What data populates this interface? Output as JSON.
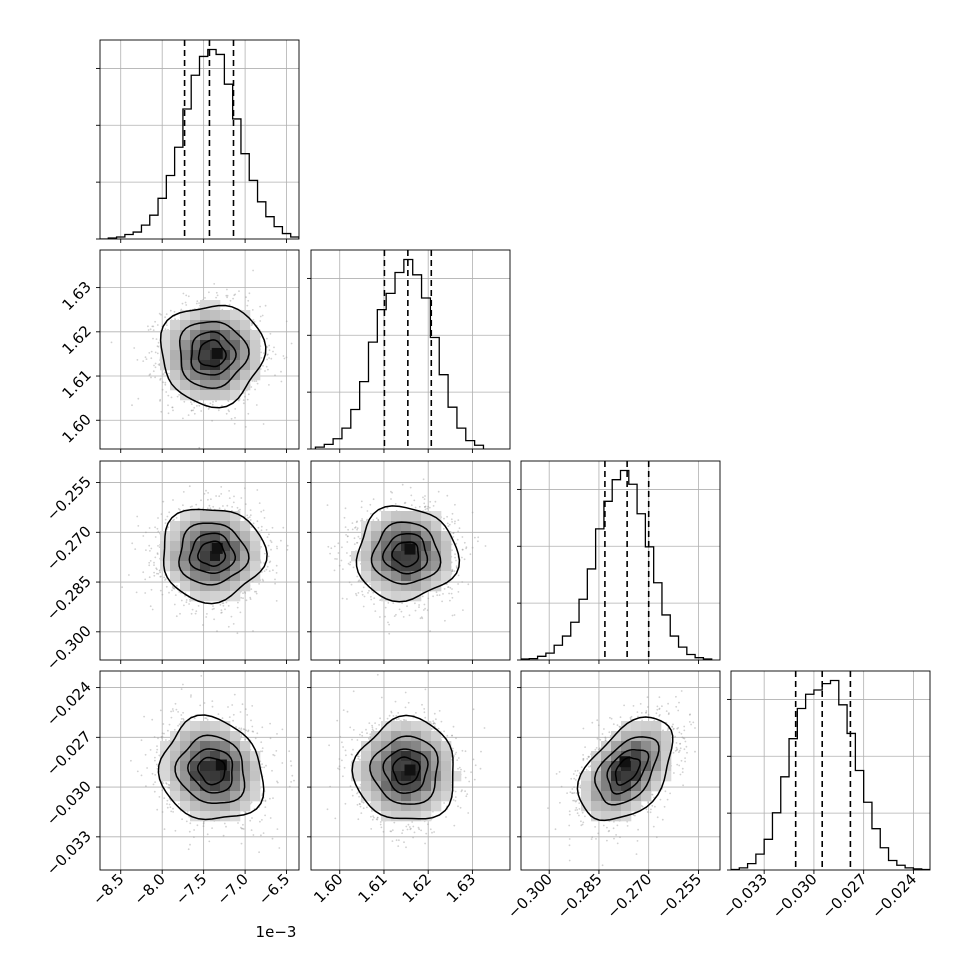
{
  "chart_data": {
    "type": "corner",
    "parameters": [
      {
        "range": [
          -8.75,
          -6.35
        ],
        "ticks": [
          -8.5,
          -8.0,
          -7.5,
          -7.0,
          -6.5
        ],
        "tick_labels": [
          "−8.5",
          "−8.0",
          "−7.5",
          "−7.0",
          "−6.5"
        ],
        "offset_label": "1e−3",
        "quantiles": [
          -7.73,
          -7.43,
          -7.14
        ],
        "hist_edges": [
          -8.75,
          -8.65,
          -8.55,
          -8.45,
          -8.35,
          -8.25,
          -8.15,
          -8.05,
          -7.95,
          -7.85,
          -7.75,
          -7.65,
          -7.55,
          -7.45,
          -7.35,
          -7.25,
          -7.15,
          -7.05,
          -6.95,
          -6.85,
          -6.75,
          -6.65,
          -6.55,
          -6.45,
          -6.35
        ],
        "hist_values": [
          0,
          2,
          4,
          9,
          14,
          28,
          48,
          82,
          128,
          185,
          262,
          330,
          368,
          382,
          372,
          312,
          242,
          172,
          118,
          75,
          45,
          25,
          11,
          4
        ]
      },
      {
        "range": [
          1.5935,
          1.6385
        ],
        "ticks": [
          1.6,
          1.61,
          1.62,
          1.63
        ],
        "tick_labels": [
          "1.60",
          "1.61",
          "1.62",
          "1.63"
        ],
        "offset_label": "",
        "quantiles": [
          1.6101,
          1.6154,
          1.6207
        ],
        "hist_edges": [
          1.5945,
          1.5965,
          1.5985,
          1.6005,
          1.6025,
          1.6045,
          1.6065,
          1.6085,
          1.6105,
          1.6125,
          1.6145,
          1.6165,
          1.6185,
          1.6205,
          1.6225,
          1.6245,
          1.6265,
          1.6285,
          1.6305,
          1.6325
        ],
        "hist_values": [
          4,
          10,
          22,
          45,
          85,
          145,
          230,
          300,
          335,
          380,
          408,
          375,
          325,
          240,
          160,
          90,
          45,
          18,
          8
        ]
      },
      {
        "range": [
          -0.3085,
          -0.2485
        ],
        "ticks": [
          -0.3,
          -0.285,
          -0.27,
          -0.255
        ],
        "tick_labels": [
          "−0.300",
          "−0.285",
          "−0.270",
          "−0.255"
        ],
        "offset_label": "",
        "quantiles": [
          -0.2832,
          -0.2765,
          -0.27
        ],
        "hist_edges": [
          -0.3085,
          -0.306,
          -0.3035,
          -0.301,
          -0.2985,
          -0.296,
          -0.2935,
          -0.291,
          -0.2885,
          -0.286,
          -0.2835,
          -0.281,
          -0.2785,
          -0.276,
          -0.2735,
          -0.271,
          -0.2685,
          -0.266,
          -0.2635,
          -0.261,
          -0.2585,
          -0.256,
          -0.2535,
          -0.251
        ],
        "hist_values": [
          2,
          3,
          8,
          15,
          32,
          52,
          82,
          132,
          198,
          285,
          345,
          392,
          412,
          382,
          318,
          246,
          168,
          98,
          52,
          28,
          12,
          5,
          2
        ]
      },
      {
        "range": [
          -0.035,
          -0.023
        ],
        "ticks": [
          -0.033,
          -0.03,
          -0.027,
          -0.024
        ],
        "tick_labels": [
          "−0.033",
          "−0.030",
          "−0.027",
          "−0.024"
        ],
        "offset_label": "",
        "quantiles": [
          -0.0311,
          -0.0295,
          -0.0278
        ],
        "hist_edges": [
          -0.035,
          -0.0345,
          -0.034,
          -0.0335,
          -0.033,
          -0.0325,
          -0.032,
          -0.0315,
          -0.031,
          -0.0305,
          -0.03,
          -0.0295,
          -0.029,
          -0.0285,
          -0.028,
          -0.0275,
          -0.027,
          -0.0265,
          -0.026,
          -0.0255,
          -0.025,
          -0.0245,
          -0.024,
          -0.0235,
          -0.023
        ],
        "hist_values": [
          1,
          4,
          12,
          30,
          58,
          108,
          176,
          248,
          305,
          332,
          340,
          352,
          358,
          312,
          258,
          188,
          128,
          78,
          42,
          18,
          9,
          4,
          2,
          1
        ]
      }
    ],
    "pairs": [
      {
        "x": 0,
        "y": 1,
        "center": [
          -7.4,
          1.615
        ],
        "sigma": [
          0.3,
          0.0055
        ],
        "rho": 0.0,
        "peak": [
          -7.33,
          1.615
        ]
      },
      {
        "x": 0,
        "y": 2,
        "center": [
          -7.4,
          -0.2765
        ],
        "sigma": [
          0.3,
          0.0068
        ],
        "rho": 0.0,
        "peak": [
          -7.33,
          -0.275
        ]
      },
      {
        "x": 1,
        "y": 2,
        "center": [
          1.615,
          -0.2765
        ],
        "sigma": [
          0.0055,
          0.0068
        ],
        "rho": 0.0,
        "peak": [
          1.616,
          -0.2752
        ]
      },
      {
        "x": 0,
        "y": 3,
        "center": [
          -7.4,
          -0.029
        ],
        "sigma": [
          0.3,
          0.0015
        ],
        "rho": -0.1,
        "peak": [
          -7.28,
          -0.0287
        ]
      },
      {
        "x": 1,
        "y": 3,
        "center": [
          1.615,
          -0.029
        ],
        "sigma": [
          0.0055,
          0.0015
        ],
        "rho": 0.0,
        "peak": [
          1.616,
          -0.029
        ]
      },
      {
        "x": 2,
        "y": 3,
        "center": [
          -0.2765,
          -0.029
        ],
        "sigma": [
          0.0068,
          0.0015
        ],
        "rho": 0.45,
        "peak": [
          -0.277,
          -0.0285
        ]
      }
    ],
    "contour_levels_sigma": [
      0.5,
      1.0,
      1.5,
      2.0
    ],
    "colors": {
      "line": "#000000",
      "grid": "#b0b0b0",
      "points": "#9a9a9a"
    },
    "grid": true
  }
}
